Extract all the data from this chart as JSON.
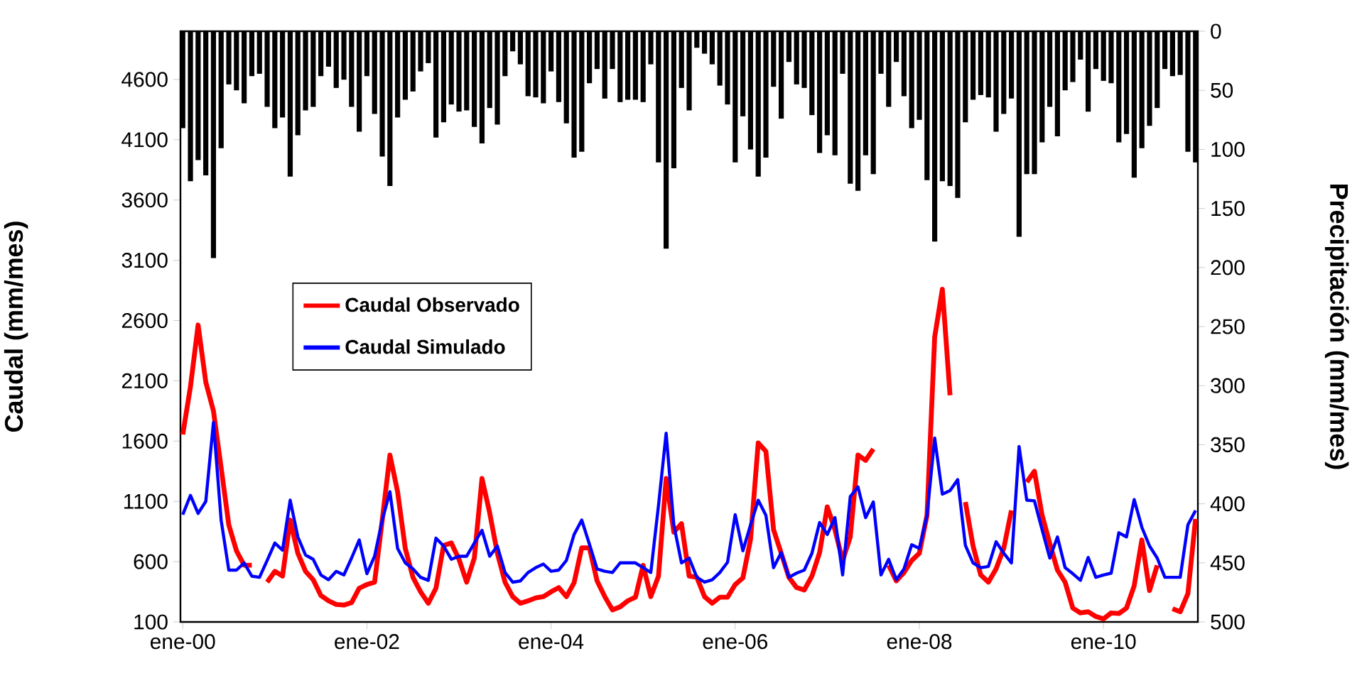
{
  "chart_data": {
    "type": "line",
    "categories": [
      "ene-00",
      null,
      null,
      null,
      null,
      null,
      null,
      null,
      null,
      null,
      null,
      null,
      null,
      null,
      null,
      null,
      null,
      null,
      null,
      null,
      null,
      null,
      null,
      null,
      "ene-02",
      null,
      null,
      null,
      null,
      null,
      null,
      null,
      null,
      null,
      null,
      null,
      null,
      null,
      null,
      null,
      null,
      null,
      null,
      null,
      null,
      null,
      null,
      null,
      "ene-04",
      null,
      null,
      null,
      null,
      null,
      null,
      null,
      null,
      null,
      null,
      null,
      null,
      null,
      null,
      null,
      null,
      null,
      null,
      null,
      null,
      null,
      null,
      null,
      "ene-06",
      null,
      null,
      null,
      null,
      null,
      null,
      null,
      null,
      null,
      null,
      null,
      null,
      null,
      null,
      null,
      null,
      null,
      null,
      null,
      null,
      null,
      null,
      null,
      "ene-08",
      null,
      null,
      null,
      null,
      null,
      null,
      null,
      null,
      null,
      null,
      null,
      null,
      null,
      null,
      null,
      null,
      null,
      null,
      null,
      null,
      null,
      null,
      null,
      "ene-10",
      null,
      null,
      null,
      null,
      null,
      null,
      null,
      null,
      null,
      null,
      null,
      null
    ],
    "series": [
      {
        "type": "bar",
        "axis": "y2",
        "color": "#000000",
        "values": [
          82,
          127,
          109,
          122,
          192,
          99,
          45,
          50,
          61,
          38,
          36,
          64,
          82,
          73,
          123,
          88,
          67,
          64,
          38,
          30,
          48,
          41,
          64,
          85,
          38,
          70,
          106,
          131,
          73,
          58,
          51,
          34,
          27,
          90,
          77,
          62,
          68,
          67,
          81,
          95,
          65,
          79,
          38,
          17,
          28,
          55,
          56,
          61,
          34,
          60,
          78,
          107,
          102,
          44,
          32,
          57,
          32,
          60,
          58,
          58,
          60,
          28,
          111,
          184,
          116,
          48,
          67,
          14,
          19,
          28,
          46,
          62,
          111,
          72,
          100,
          123,
          107,
          47,
          74,
          26,
          45,
          48,
          71,
          103,
          88,
          105,
          36,
          129,
          135,
          105,
          121,
          36,
          64,
          26,
          55,
          82,
          75,
          126,
          178,
          127,
          131,
          141,
          77,
          58,
          54,
          56,
          85,
          70,
          57,
          174,
          121,
          121,
          94,
          64,
          89,
          50,
          43,
          24,
          68,
          32,
          42,
          44,
          94,
          87,
          124,
          99,
          80,
          65,
          32,
          38,
          37,
          102,
          111
        ]
      },
      {
        "name": "Caudal Observado",
        "color": "#ff0000",
        "values": [
          1655,
          2050,
          2563,
          2090,
          1850,
          1380,
          905,
          690,
          570,
          570,
          null,
          430,
          520,
          480,
          945,
          670,
          520,
          450,
          320,
          275,
          245,
          240,
          260,
          380,
          410,
          430,
          945,
          1485,
          1180,
          710,
          470,
          350,
          255,
          380,
          735,
          755,
          620,
          430,
          630,
          1290,
          1005,
          670,
          430,
          310,
          255,
          275,
          300,
          310,
          350,
          385,
          310,
          425,
          715,
          715,
          440,
          310,
          200,
          225,
          275,
          305,
          570,
          310,
          480,
          1290,
          845,
          915,
          480,
          470,
          310,
          255,
          305,
          305,
          410,
          465,
          785,
          1585,
          1515,
          865,
          670,
          470,
          385,
          365,
          480,
          675,
          1055,
          865,
          610,
          805,
          1485,
          1440,
          1535,
          null,
          570,
          440,
          510,
          610,
          670,
          985,
          2465,
          2860,
          1980,
          null,
          1095,
          730,
          490,
          430,
          540,
          710,
          1025,
          null,
          1260,
          1350,
          985,
          750,
          530,
          430,
          215,
          175,
          185,
          145,
          125,
          175,
          170,
          215,
          400,
          780,
          360,
          570,
          null,
          210,
          185,
          335,
          955
        ]
      },
      {
        "name": "Caudal Simulado",
        "color": "#0000ff",
        "values": [
          990,
          1150,
          1000,
          1100,
          1755,
          945,
          530,
          530,
          590,
          480,
          470,
          610,
          755,
          695,
          1110,
          805,
          655,
          620,
          490,
          450,
          520,
          490,
          630,
          780,
          500,
          645,
          945,
          1180,
          710,
          590,
          540,
          470,
          445,
          795,
          730,
          620,
          645,
          645,
          755,
          860,
          645,
          730,
          510,
          430,
          440,
          510,
          550,
          580,
          520,
          530,
          610,
          825,
          945,
          745,
          540,
          520,
          510,
          590,
          590,
          590,
          550,
          510,
          1065,
          1665,
          905,
          590,
          630,
          470,
          430,
          450,
          510,
          595,
          990,
          690,
          905,
          1110,
          985,
          550,
          675,
          470,
          505,
          530,
          670,
          925,
          825,
          965,
          490,
          1140,
          1220,
          965,
          1095,
          490,
          620,
          450,
          540,
          740,
          710,
          985,
          1625,
          1160,
          1190,
          1280,
          735,
          590,
          550,
          560,
          765,
          670,
          590,
          1555,
          1110,
          1105,
          865,
          630,
          805,
          550,
          500,
          445,
          635,
          470,
          490,
          505,
          840,
          805,
          1115,
          885,
          730,
          630,
          470,
          470,
          470,
          905,
          1025
        ]
      }
    ],
    "ylabel": "Caudal (mm/mes)",
    "y2label": "Precipitación (mm/mes)",
    "ylim": [
      100,
      5000
    ],
    "yticks": [
      100,
      600,
      1100,
      1600,
      2100,
      2600,
      3100,
      3600,
      4100,
      4600
    ],
    "y2lim": [
      500,
      0
    ],
    "y2ticks": [
      0,
      50,
      100,
      150,
      200,
      250,
      300,
      350,
      400,
      450,
      500
    ],
    "legend": "left"
  }
}
